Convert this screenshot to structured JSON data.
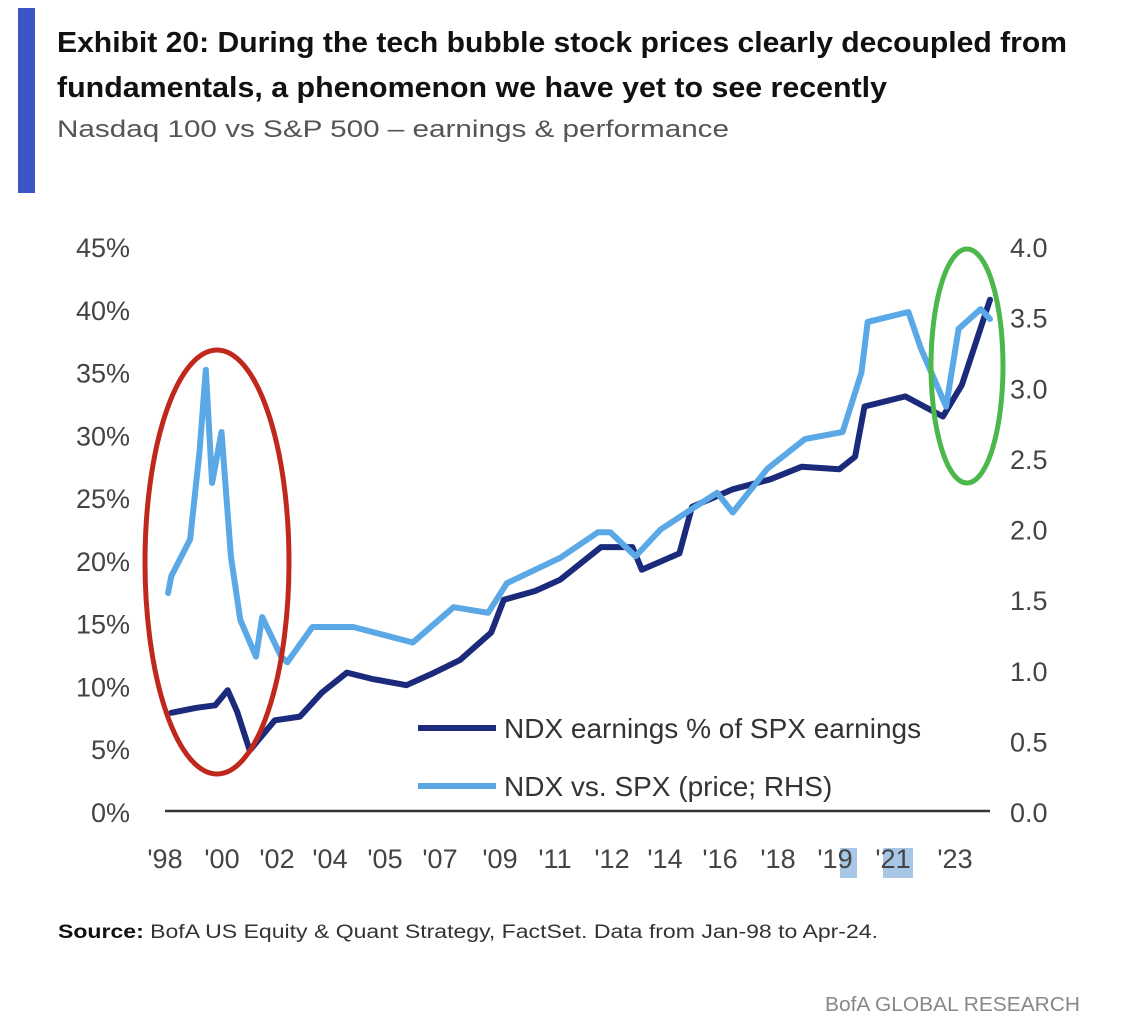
{
  "header": {
    "title_line1": "Exhibit 20: During the tech bubble stock prices clearly decoupled from",
    "title_line2": "fundamentals, a phenomenon we have yet to see recently",
    "subtitle": "Nasdaq 100 vs S&P 500 – earnings & performance",
    "accent_color": "#3a55c4"
  },
  "chart_data": {
    "type": "line",
    "title": "Exhibit 20: During the tech bubble stock prices clearly decoupled from fundamentals, a phenomenon we have yet to see recently",
    "subtitle": "Nasdaq 100 vs S&P 500 – earnings & performance",
    "x_tick_labels": [
      "'98",
      "'00",
      "'02",
      "'04",
      "'05",
      "'07",
      "'09",
      "'11",
      "'12",
      "'14",
      "'16",
      "'18",
      "'19",
      "'21",
      "'23"
    ],
    "highlighted_x_ticks": [
      "'19",
      "'21"
    ],
    "xlim": [
      1998.0,
      2024.3
    ],
    "y_left": {
      "ticks": [
        "0%",
        "5%",
        "10%",
        "15%",
        "20%",
        "25%",
        "30%",
        "35%",
        "40%",
        "45%"
      ],
      "ylim": [
        0,
        45
      ]
    },
    "y_right": {
      "ticks": [
        "0.0",
        "0.5",
        "1.0",
        "1.5",
        "2.0",
        "2.5",
        "3.0",
        "3.5",
        "4.0"
      ],
      "ylim": [
        0,
        4
      ]
    },
    "grid": false,
    "legend_position": "bottom-right",
    "series": [
      {
        "name": "NDX earnings % of SPX earnings",
        "axis": "left",
        "color": "#1b2a7a",
        "points": [
          [
            1998.2,
            7.9
          ],
          [
            1999.0,
            8.3
          ],
          [
            1999.6,
            8.5
          ],
          [
            2000.0,
            9.7
          ],
          [
            2000.3,
            8.0
          ],
          [
            2000.7,
            4.9
          ],
          [
            2001.5,
            7.3
          ],
          [
            2002.3,
            7.6
          ],
          [
            2003.0,
            9.5
          ],
          [
            2003.8,
            11.1
          ],
          [
            2004.6,
            10.6
          ],
          [
            2005.7,
            10.1
          ],
          [
            2006.5,
            11.0
          ],
          [
            2007.4,
            12.1
          ],
          [
            2008.4,
            14.3
          ],
          [
            2008.8,
            16.9
          ],
          [
            2009.8,
            17.6
          ],
          [
            2010.6,
            18.5
          ],
          [
            2011.9,
            21.1
          ],
          [
            2012.9,
            21.1
          ],
          [
            2013.2,
            19.3
          ],
          [
            2014.4,
            20.6
          ],
          [
            2014.8,
            24.3
          ],
          [
            2016.1,
            25.7
          ],
          [
            2017.3,
            26.5
          ],
          [
            2018.3,
            27.5
          ],
          [
            2019.5,
            27.3
          ],
          [
            2020.0,
            28.3
          ],
          [
            2020.3,
            32.3
          ],
          [
            2021.6,
            33.1
          ],
          [
            2022.8,
            31.5
          ],
          [
            2023.4,
            34.0
          ],
          [
            2024.3,
            40.8
          ]
        ]
      },
      {
        "name": "NDX vs. SPX (price; RHS)",
        "axis": "right",
        "color": "#5aa8e6",
        "points": [
          [
            1998.1,
            1.55
          ],
          [
            1998.2,
            1.67
          ],
          [
            1998.8,
            1.93
          ],
          [
            1999.1,
            2.55
          ],
          [
            1999.3,
            3.13
          ],
          [
            1999.5,
            2.33
          ],
          [
            1999.8,
            2.69
          ],
          [
            2000.1,
            1.81
          ],
          [
            2000.4,
            1.36
          ],
          [
            2000.9,
            1.1
          ],
          [
            2001.1,
            1.38
          ],
          [
            2001.7,
            1.1
          ],
          [
            2001.9,
            1.06
          ],
          [
            2002.7,
            1.31
          ],
          [
            2004.0,
            1.31
          ],
          [
            2005.9,
            1.2
          ],
          [
            2007.2,
            1.45
          ],
          [
            2008.3,
            1.41
          ],
          [
            2008.9,
            1.62
          ],
          [
            2010.6,
            1.8
          ],
          [
            2011.8,
            1.98
          ],
          [
            2012.2,
            1.98
          ],
          [
            2013.0,
            1.81
          ],
          [
            2013.8,
            2.0
          ],
          [
            2014.9,
            2.16
          ],
          [
            2015.6,
            2.26
          ],
          [
            2016.1,
            2.12
          ],
          [
            2017.2,
            2.43
          ],
          [
            2018.4,
            2.64
          ],
          [
            2019.6,
            2.69
          ],
          [
            2020.2,
            3.11
          ],
          [
            2020.4,
            3.47
          ],
          [
            2021.7,
            3.54
          ],
          [
            2022.1,
            3.28
          ],
          [
            2022.9,
            2.87
          ],
          [
            2023.3,
            3.42
          ],
          [
            2024.0,
            3.56
          ],
          [
            2024.3,
            3.49
          ]
        ]
      }
    ],
    "annotations": [
      {
        "shape": "ellipse",
        "color": "#c0281e",
        "x_range": [
          1998.0,
          2002.0
        ]
      },
      {
        "shape": "ellipse",
        "color": "#4cb84c",
        "x_range": [
          2022.9,
          2024.3
        ]
      }
    ]
  },
  "legend": {
    "items": [
      {
        "label": "NDX earnings % of SPX earnings",
        "color": "#1b2a7a"
      },
      {
        "label": "NDX vs. SPX (price; RHS)",
        "color": "#5aa8e6"
      }
    ]
  },
  "footer": {
    "source_label": "Source:",
    "source_text": " BofA US Equity & Quant Strategy, FactSet. Data from Jan-98 to Apr-24.",
    "brand": "BofA GLOBAL RESEARCH"
  }
}
